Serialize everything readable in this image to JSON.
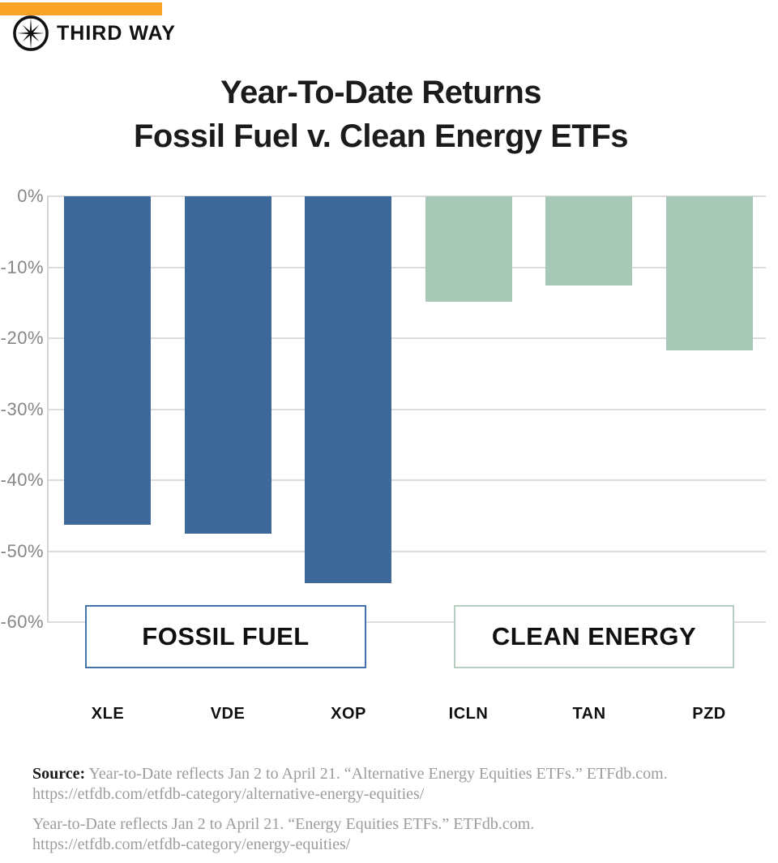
{
  "brand": {
    "name": "THIRD WAY",
    "logo_icon": "compass-star-icon",
    "accent_color": "#F9A426"
  },
  "title": {
    "line1": "Year-To-Date Returns",
    "line2": "Fossil Fuel v. Clean Energy ETFs"
  },
  "chart_data": {
    "type": "bar",
    "title": "Year-To-Date Returns Fossil Fuel v. Clean Energy ETFs",
    "categories": [
      "XLE",
      "VDE",
      "XOP",
      "ICLN",
      "TAN",
      "PZD"
    ],
    "values": [
      -46.3,
      -47.5,
      -54.5,
      -14.8,
      -12.6,
      -21.7
    ],
    "series": [
      {
        "name": "Fossil Fuel",
        "tickers": [
          "XLE",
          "VDE",
          "XOP"
        ],
        "color": "#3d689a"
      },
      {
        "name": "Clean Energy",
        "tickers": [
          "ICLN",
          "TAN",
          "PZD"
        ],
        "color": "#a7c8b6"
      }
    ],
    "xlabel": "",
    "ylabel": "",
    "y_ticks": [
      "0%",
      "-10%",
      "-20%",
      "-30%",
      "-40%",
      "-50%",
      "-60%"
    ],
    "ylim": [
      -60,
      0
    ],
    "grid": true,
    "legend_position": "bottom",
    "legend_boxes": [
      {
        "label": "FOSSIL FUEL",
        "border_color": "#4473ab"
      },
      {
        "label": "CLEAN ENERGY",
        "border_color": "#b6cfc1"
      }
    ]
  },
  "footnotes": [
    {
      "prefix": "Source:",
      "text": "Year-to-Date reflects Jan 2 to April 21. “Alternative Energy Equities ETFs.” ETFdb.com.",
      "url": "https://etfdb.com/etfdb-category/alternative-energy-equities/"
    },
    {
      "prefix": "",
      "text": "Year-to-Date reflects Jan 2 to April 21. “Energy Equities ETFs.” ETFdb.com.",
      "url": "https://etfdb.com/etfdb-category/energy-equities/"
    }
  ],
  "colors": {
    "accent_orange": "#F9A426",
    "fossil_blue": "#3d689a",
    "clean_green": "#a7c8b6",
    "gridline": "#dcdcdc",
    "axis_label_gray": "#868686",
    "title_black": "#1b1b1b",
    "footnote_gray": "#9c9c9c"
  }
}
